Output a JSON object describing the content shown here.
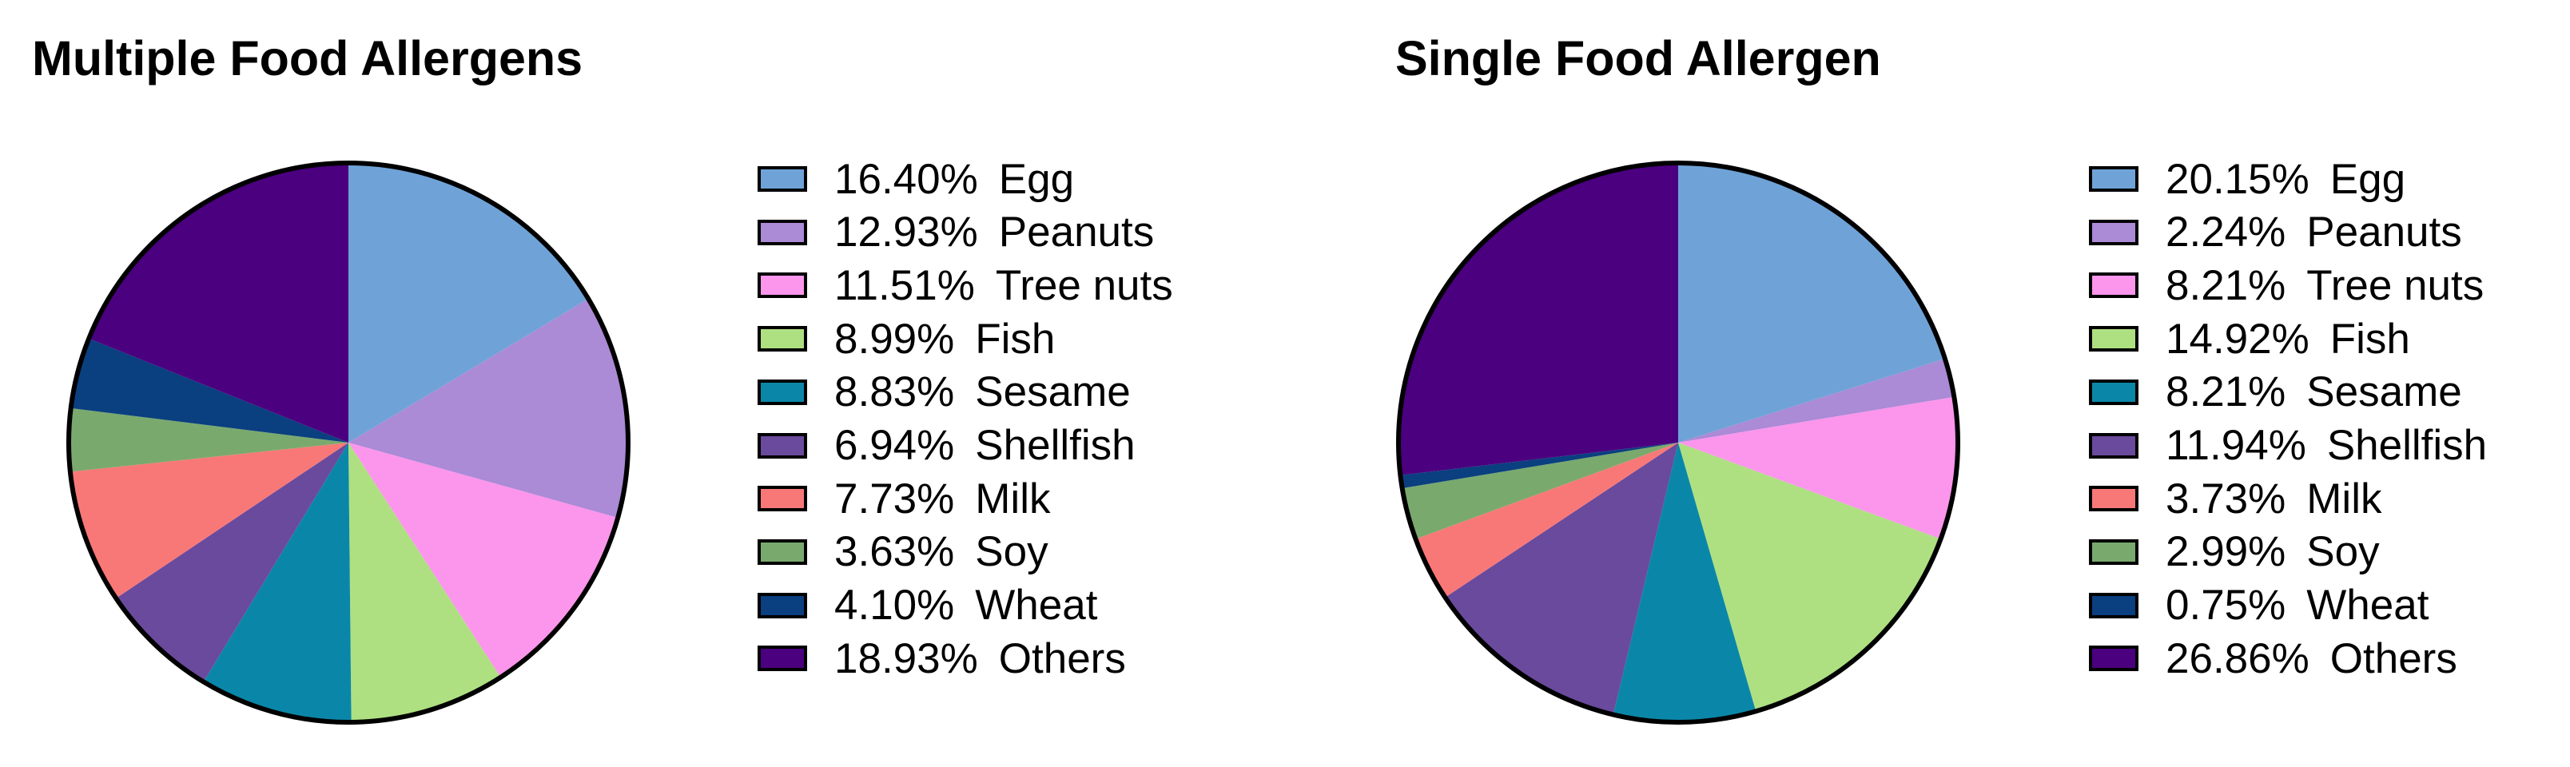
{
  "chart_data": [
    {
      "type": "pie",
      "title": "Multiple Food Allergens",
      "legend_position": "right",
      "categories": [
        "Egg",
        "Peanuts",
        "Tree nuts",
        "Fish",
        "Sesame",
        "Shellfish",
        "Milk",
        "Soy",
        "Wheat",
        "Others"
      ],
      "values": [
        16.4,
        12.93,
        11.51,
        8.99,
        8.83,
        6.94,
        7.73,
        3.63,
        4.1,
        18.93
      ],
      "labels": [
        "16.40%",
        "12.93%",
        "11.51%",
        "8.99%",
        "8.83%",
        "6.94%",
        "7.73%",
        "3.63%",
        "4.10%",
        "18.93%"
      ],
      "colors": [
        "#6fa3d8",
        "#ab8ad6",
        "#fb96ec",
        "#aee082",
        "#0a87a8",
        "#6a4a9c",
        "#f87878",
        "#7aa96e",
        "#0a3f80",
        "#4b007f"
      ]
    },
    {
      "type": "pie",
      "title": "Single Food Allergen",
      "legend_position": "right",
      "categories": [
        "Egg",
        "Peanuts",
        "Tree nuts",
        "Fish",
        "Sesame",
        "Shellfish",
        "Milk",
        "Soy",
        "Wheat",
        "Others"
      ],
      "values": [
        20.15,
        2.24,
        8.21,
        14.92,
        8.21,
        11.94,
        3.73,
        2.99,
        0.75,
        26.86
      ],
      "labels": [
        "20.15%",
        "2.24%",
        "8.21%",
        "14.92%",
        "8.21%",
        "11.94%",
        "3.73%",
        "2.99%",
        "0.75%",
        "26.86%"
      ],
      "colors": [
        "#6fa3d8",
        "#ab8ad6",
        "#fb96ec",
        "#aee082",
        "#0a87a8",
        "#6a4a9c",
        "#f87878",
        "#7aa96e",
        "#0a3f80",
        "#4b007f"
      ]
    }
  ]
}
